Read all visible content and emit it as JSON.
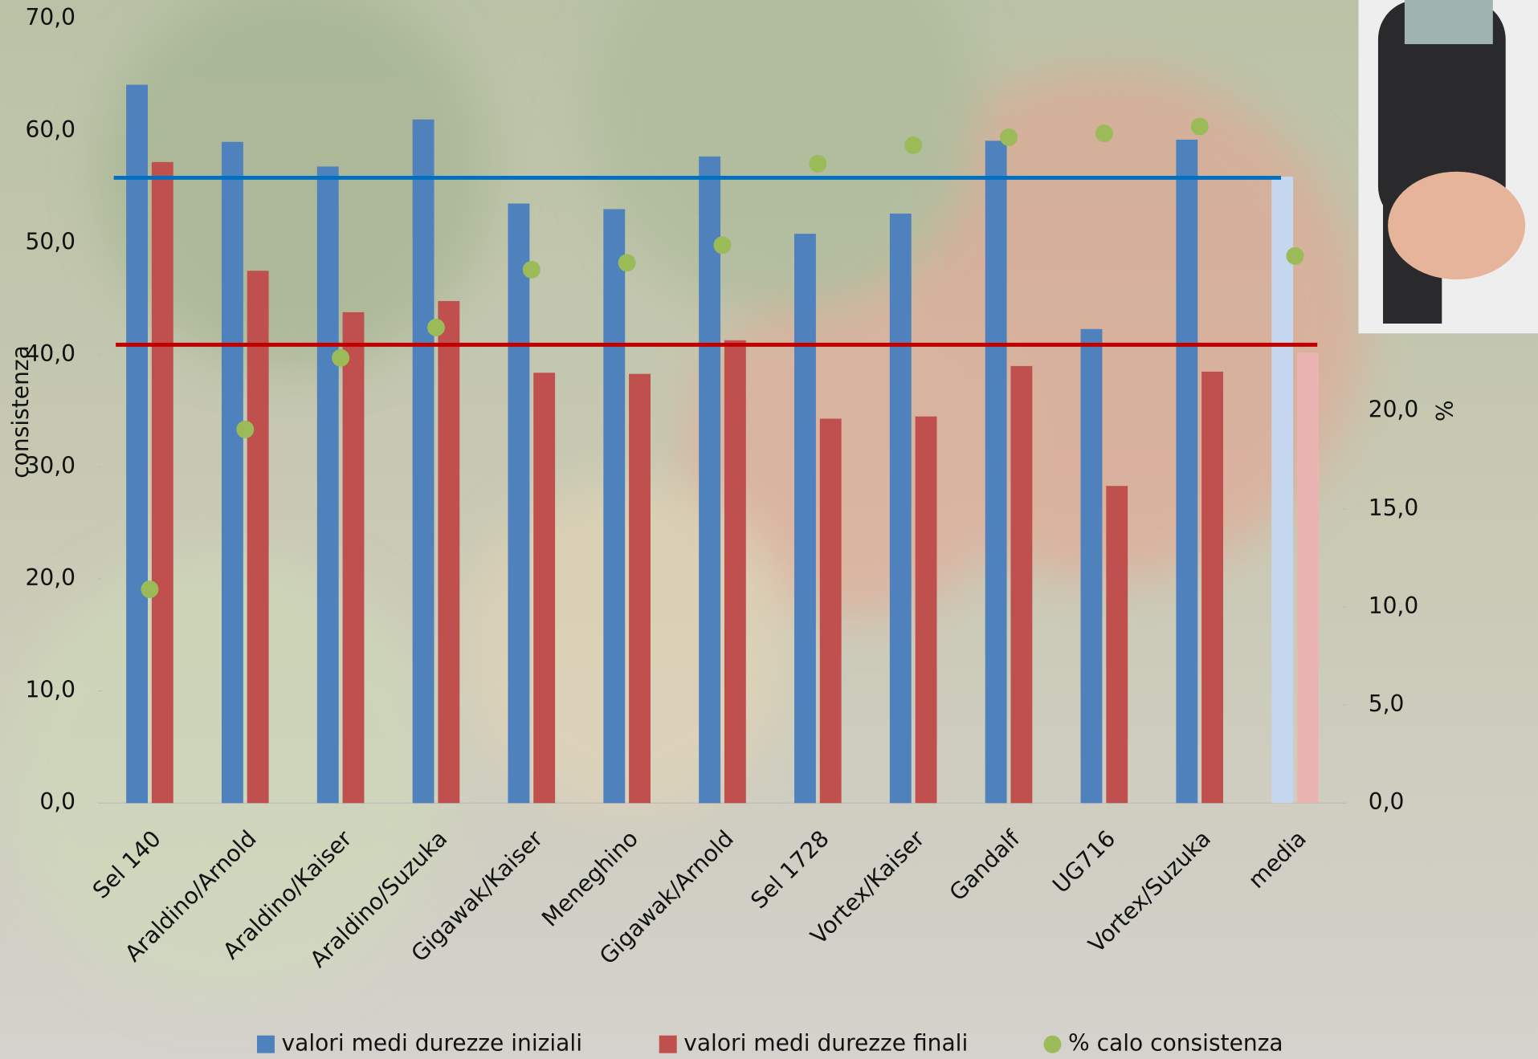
{
  "chart_data": {
    "type": "bar",
    "y_label": "consistenza",
    "y2_label": "%",
    "categories": [
      "Sel 140",
      "Araldino/Arnold",
      "Araldino/Kaiser",
      "Araldino/Suzuka",
      "Gigawak/Kaiser",
      "Meneghino",
      "Gigawak/Arnold",
      "Sel 1728",
      "Vortex/Kaiser",
      "Gandalf",
      "UG716",
      "Vortex/Suzuka",
      "media"
    ],
    "series": [
      {
        "name": "valori medi durezze iniziali",
        "type": "bar",
        "color": "#4f81bd",
        "media_color": "#c5d7ee",
        "values": [
          64.1,
          59.0,
          56.8,
          61.0,
          53.5,
          53.0,
          57.7,
          50.8,
          52.6,
          59.1,
          42.3,
          59.2,
          55.9
        ]
      },
      {
        "name": "valori medi durezze finali",
        "type": "bar",
        "color": "#c0504d",
        "media_color": "#eab4b2",
        "values": [
          57.2,
          47.5,
          43.8,
          44.8,
          38.4,
          38.3,
          41.3,
          34.3,
          34.5,
          39.0,
          28.3,
          38.5,
          40.2
        ]
      },
      {
        "name": "% calo consistenza",
        "type": "scatter",
        "axis": "y2",
        "color": "#9bbb59",
        "values": [
          10.9,
          19.05,
          22.7,
          24.25,
          27.2,
          27.55,
          28.45,
          32.6,
          33.55,
          33.95,
          34.15,
          34.5,
          27.9
        ]
      }
    ],
    "reference_lines": [
      {
        "value": 55.8,
        "color": "#0070c0"
      },
      {
        "value": 40.9,
        "color": "#c00000"
      }
    ],
    "ylim": [
      0,
      70
    ],
    "yticks": [
      {
        "value": 0,
        "label": "0,0"
      },
      {
        "value": 10,
        "label": "10,0"
      },
      {
        "value": 20,
        "label": "20,0"
      },
      {
        "value": 30,
        "label": "30,0"
      },
      {
        "value": 40,
        "label": "40,0"
      },
      {
        "value": 50,
        "label": "50,0"
      },
      {
        "value": 60,
        "label": "60,0"
      },
      {
        "value": 70,
        "label": "70,0"
      }
    ],
    "y2lim": [
      0,
      40
    ],
    "y2ticks": [
      {
        "value": 0,
        "label": "0,0"
      },
      {
        "value": 5,
        "label": "5,0"
      },
      {
        "value": 10,
        "label": "10,0"
      },
      {
        "value": 15,
        "label": "15,0"
      },
      {
        "value": 20,
        "label": "20,0"
      }
    ],
    "legend": "bottom"
  }
}
